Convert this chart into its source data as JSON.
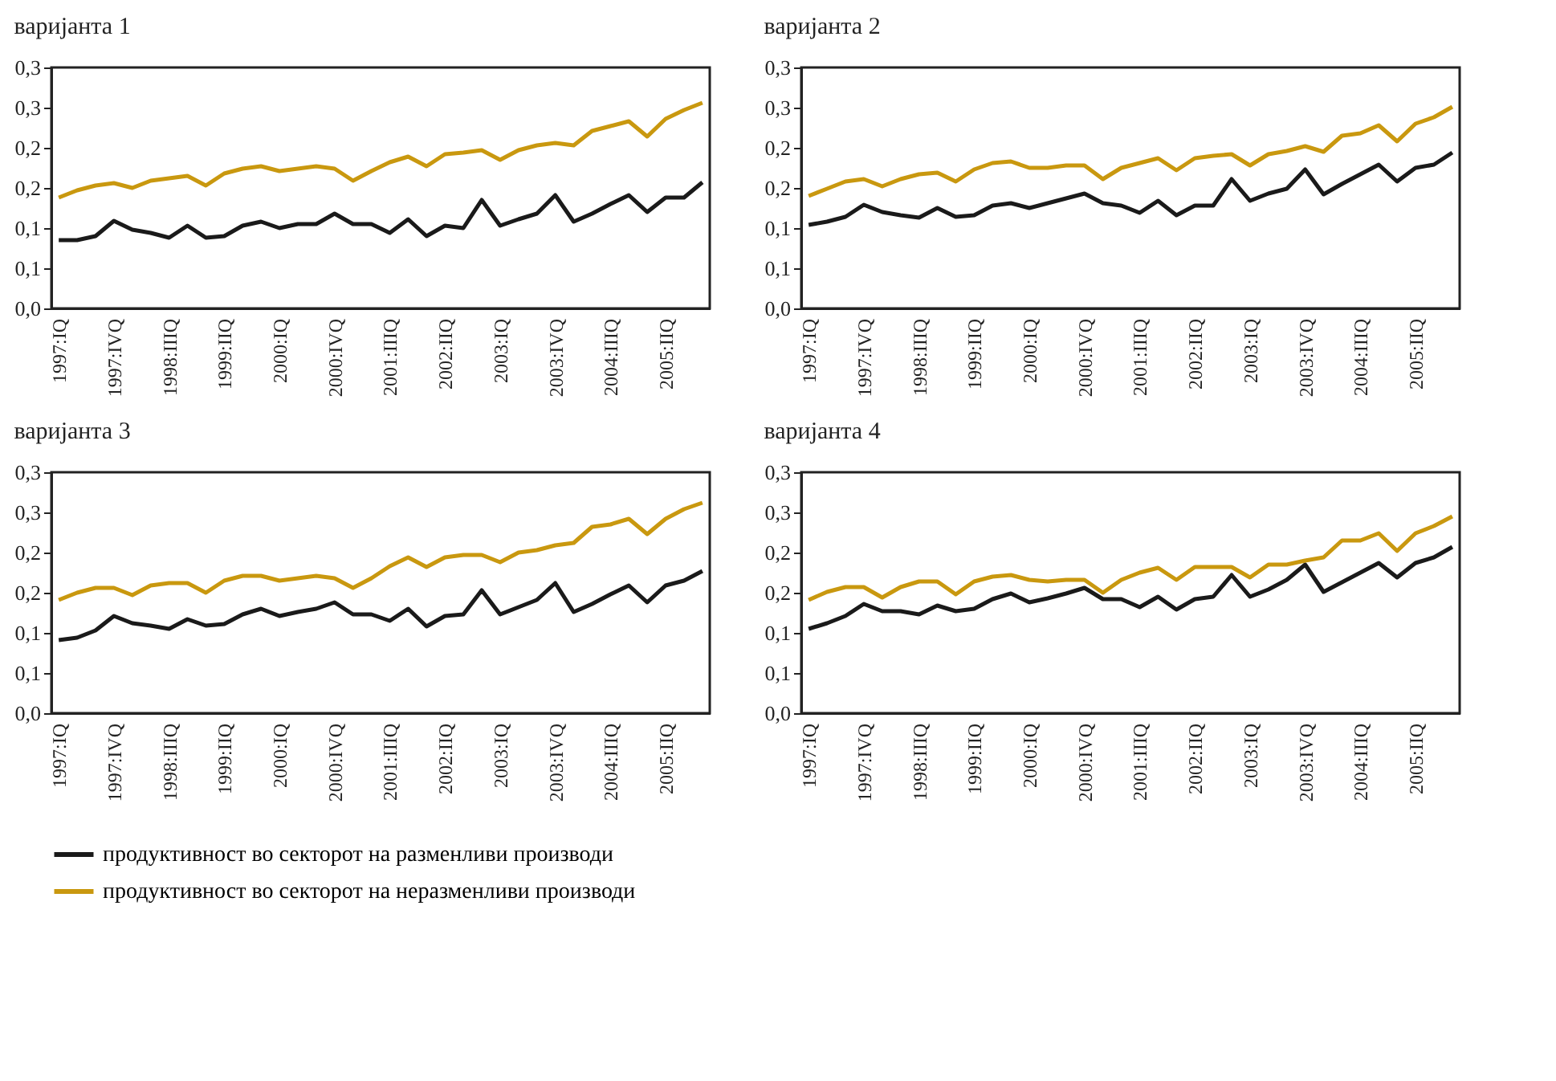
{
  "chart_data": [
    {
      "type": "line",
      "title": "варијанта 1",
      "categories": [
        "1997:IQ",
        null,
        null,
        "1997:IVQ",
        null,
        null,
        "1998:IIIQ",
        null,
        null,
        "1999:IIQ",
        null,
        null,
        "2000:IQ",
        null,
        null,
        "2000:IVQ",
        null,
        null,
        "2001:IIIQ",
        null,
        null,
        "2002:IIQ",
        null,
        null,
        "2003:IQ",
        null,
        null,
        "2003:IVQ",
        null,
        null,
        "2004:IIIQ",
        null,
        null,
        "2005:IIQ",
        null,
        null
      ],
      "ylim": [
        0,
        0.3
      ],
      "yticks": [
        {
          "value": 0,
          "label": "0,0"
        },
        {
          "value": 0.05,
          "label": "0,1"
        },
        {
          "value": 0.1,
          "label": "0,1"
        },
        {
          "value": 0.15,
          "label": "0,2"
        },
        {
          "value": 0.2,
          "label": "0,2"
        },
        {
          "value": 0.25,
          "label": "0,3"
        },
        {
          "value": 0.3,
          "label": "0,3"
        }
      ],
      "grid": false,
      "legend": "bottom",
      "series": [
        {
          "name": "продуктивност во секторот на разменливи производи",
          "color": "#1a1a1a",
          "values": [
            0.085,
            0.085,
            0.09,
            0.109,
            0.098,
            0.094,
            0.088,
            0.103,
            0.088,
            0.09,
            0.103,
            0.108,
            0.1,
            0.105,
            0.105,
            0.118,
            0.105,
            0.105,
            0.094,
            0.111,
            0.09,
            0.103,
            0.1,
            0.135,
            0.103,
            0.111,
            0.118,
            0.141,
            0.108,
            0.118,
            0.13,
            0.141,
            0.12,
            0.138,
            0.138,
            0.157
          ]
        },
        {
          "name": "продуктивност во секторот на неразменливи производи",
          "color": "#c9980f",
          "values": [
            0.138,
            0.147,
            0.153,
            0.156,
            0.15,
            0.159,
            0.162,
            0.165,
            0.153,
            0.168,
            0.174,
            0.177,
            0.171,
            0.174,
            0.177,
            0.174,
            0.159,
            0.171,
            0.182,
            0.189,
            0.177,
            0.192,
            0.194,
            0.197,
            0.185,
            0.197,
            0.203,
            0.206,
            0.203,
            0.221,
            0.227,
            0.233,
            0.214,
            0.236,
            0.247,
            0.256
          ]
        }
      ]
    },
    {
      "type": "line",
      "title": "варијанта 2",
      "categories": [
        "1997:IQ",
        null,
        null,
        "1997:IVQ",
        null,
        null,
        "1998:IIIQ",
        null,
        null,
        "1999:IIQ",
        null,
        null,
        "2000:IQ",
        null,
        null,
        "2000:IVQ",
        null,
        null,
        "2001:IIIQ",
        null,
        null,
        "2002:IIQ",
        null,
        null,
        "2003:IQ",
        null,
        null,
        "2003:IVQ",
        null,
        null,
        "2004:IIIQ",
        null,
        null,
        "2005:IIQ",
        null,
        null
      ],
      "ylim": [
        0,
        0.3
      ],
      "yticks": [
        {
          "value": 0,
          "label": "0,0"
        },
        {
          "value": 0.05,
          "label": "0,1"
        },
        {
          "value": 0.1,
          "label": "0,1"
        },
        {
          "value": 0.15,
          "label": "0,2"
        },
        {
          "value": 0.2,
          "label": "0,2"
        },
        {
          "value": 0.25,
          "label": "0,3"
        },
        {
          "value": 0.3,
          "label": "0,3"
        }
      ],
      "grid": false,
      "legend": "bottom",
      "series": [
        {
          "name": "продуктивност во секторот на разменливи производи",
          "color": "#1a1a1a",
          "values": [
            0.104,
            0.108,
            0.114,
            0.129,
            0.12,
            0.116,
            0.113,
            0.125,
            0.114,
            0.116,
            0.128,
            0.131,
            0.125,
            0.131,
            0.137,
            0.143,
            0.131,
            0.128,
            0.119,
            0.134,
            0.116,
            0.128,
            0.128,
            0.161,
            0.134,
            0.143,
            0.149,
            0.173,
            0.142,
            0.155,
            0.167,
            0.179,
            0.158,
            0.175,
            0.179,
            0.194
          ]
        },
        {
          "name": "продуктивност во секторот на неразменливи производи",
          "color": "#c9980f",
          "values": [
            0.14,
            0.149,
            0.158,
            0.161,
            0.152,
            0.161,
            0.167,
            0.169,
            0.158,
            0.173,
            0.181,
            0.183,
            0.175,
            0.175,
            0.178,
            0.178,
            0.161,
            0.175,
            0.181,
            0.187,
            0.172,
            0.187,
            0.19,
            0.192,
            0.178,
            0.192,
            0.196,
            0.202,
            0.195,
            0.215,
            0.218,
            0.228,
            0.208,
            0.23,
            0.238,
            0.251
          ]
        }
      ]
    },
    {
      "type": "line",
      "title": "варијанта 3",
      "categories": [
        "1997:IQ",
        null,
        null,
        "1997:IVQ",
        null,
        null,
        "1998:IIIQ",
        null,
        null,
        "1999:IIQ",
        null,
        null,
        "2000:IQ",
        null,
        null,
        "2000:IVQ",
        null,
        null,
        "2001:IIIQ",
        null,
        null,
        "2002:IIQ",
        null,
        null,
        "2003:IQ",
        null,
        null,
        "2003:IVQ",
        null,
        null,
        "2004:IIIQ",
        null,
        null,
        "2005:IIQ",
        null,
        null
      ],
      "ylim": [
        0,
        0.3
      ],
      "yticks": [
        {
          "value": 0,
          "label": "0,0"
        },
        {
          "value": 0.05,
          "label": "0,1"
        },
        {
          "value": 0.1,
          "label": "0,1"
        },
        {
          "value": 0.15,
          "label": "0,2"
        },
        {
          "value": 0.2,
          "label": "0,2"
        },
        {
          "value": 0.25,
          "label": "0,3"
        },
        {
          "value": 0.3,
          "label": "0,3"
        }
      ],
      "grid": false,
      "legend": "bottom",
      "series": [
        {
          "name": "продуктивност во секторот на разменливи производи",
          "color": "#1a1a1a",
          "values": [
            0.091,
            0.094,
            0.103,
            0.121,
            0.112,
            0.109,
            0.105,
            0.117,
            0.109,
            0.111,
            0.123,
            0.13,
            0.121,
            0.126,
            0.13,
            0.138,
            0.123,
            0.123,
            0.115,
            0.13,
            0.108,
            0.121,
            0.123,
            0.153,
            0.123,
            0.132,
            0.141,
            0.162,
            0.126,
            0.136,
            0.148,
            0.159,
            0.138,
            0.159,
            0.165,
            0.177
          ]
        },
        {
          "name": "продуктивност во секторот на неразменливи производи",
          "color": "#c9980f",
          "values": [
            0.141,
            0.15,
            0.156,
            0.156,
            0.147,
            0.159,
            0.162,
            0.162,
            0.15,
            0.165,
            0.171,
            0.171,
            0.165,
            0.168,
            0.171,
            0.168,
            0.156,
            0.168,
            0.183,
            0.194,
            0.182,
            0.194,
            0.197,
            0.197,
            0.188,
            0.2,
            0.203,
            0.209,
            0.212,
            0.232,
            0.235,
            0.242,
            0.223,
            0.242,
            0.254,
            0.262
          ]
        }
      ]
    },
    {
      "type": "line",
      "title": "варијанта 4",
      "categories": [
        "1997:IQ",
        null,
        null,
        "1997:IVQ",
        null,
        null,
        "1998:IIIQ",
        null,
        null,
        "1999:IIQ",
        null,
        null,
        "2000:IQ",
        null,
        null,
        "2000:IVQ",
        null,
        null,
        "2001:IIIQ",
        null,
        null,
        "2002:IIQ",
        null,
        null,
        "2003:IQ",
        null,
        null,
        "2003:IVQ",
        null,
        null,
        "2004:IIIQ",
        null,
        null,
        "2005:IIQ",
        null,
        null
      ],
      "ylim": [
        0,
        0.3
      ],
      "yticks": [
        {
          "value": 0,
          "label": "0,0"
        },
        {
          "value": 0.05,
          "label": "0,1"
        },
        {
          "value": 0.1,
          "label": "0,1"
        },
        {
          "value": 0.15,
          "label": "0,2"
        },
        {
          "value": 0.2,
          "label": "0,2"
        },
        {
          "value": 0.25,
          "label": "0,3"
        },
        {
          "value": 0.3,
          "label": "0,3"
        }
      ],
      "grid": false,
      "legend": "bottom",
      "series": [
        {
          "name": "продуктивност во секторот на разменливи производи",
          "color": "#1a1a1a",
          "values": [
            0.105,
            0.112,
            0.121,
            0.136,
            0.127,
            0.127,
            0.123,
            0.134,
            0.127,
            0.13,
            0.142,
            0.149,
            0.138,
            0.143,
            0.149,
            0.156,
            0.142,
            0.142,
            0.132,
            0.145,
            0.129,
            0.142,
            0.145,
            0.172,
            0.145,
            0.154,
            0.166,
            0.185,
            0.151,
            0.163,
            0.175,
            0.187,
            0.169,
            0.187,
            0.194,
            0.207
          ]
        },
        {
          "name": "продуктивност во секторот на неразменливи производи",
          "color": "#c9980f",
          "values": [
            0.141,
            0.151,
            0.157,
            0.157,
            0.144,
            0.157,
            0.164,
            0.164,
            0.148,
            0.164,
            0.17,
            0.172,
            0.166,
            0.164,
            0.166,
            0.166,
            0.15,
            0.166,
            0.175,
            0.181,
            0.166,
            0.182,
            0.182,
            0.182,
            0.169,
            0.185,
            0.185,
            0.19,
            0.194,
            0.215,
            0.215,
            0.224,
            0.202,
            0.224,
            0.233,
            0.245
          ]
        }
      ]
    }
  ]
}
